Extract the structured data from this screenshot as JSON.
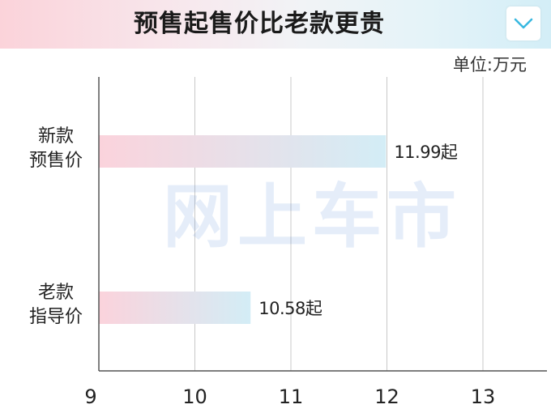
{
  "header": {
    "title": "预售起售价比老款更贵",
    "menu_icon": "chevron-down-icon",
    "accent_color": "#38b8e0"
  },
  "unit_label": "单位:万元",
  "watermark": "网上车市",
  "chart_data": {
    "type": "bar",
    "orientation": "horizontal",
    "categories": [
      [
        "新款",
        "预售价"
      ],
      [
        "老款",
        "指导价"
      ]
    ],
    "values": [
      11.99,
      10.58
    ],
    "data_labels": [
      "11.99起",
      "10.58起"
    ],
    "xlim": [
      9,
      13.7
    ],
    "x_ticks": [
      9,
      10,
      11,
      12,
      13
    ],
    "x_tick_labels": [
      "9",
      "10",
      "11",
      "12",
      "13"
    ],
    "grid": true,
    "bar_gradient": [
      "#fbd3dc",
      "#d3edf6"
    ]
  }
}
